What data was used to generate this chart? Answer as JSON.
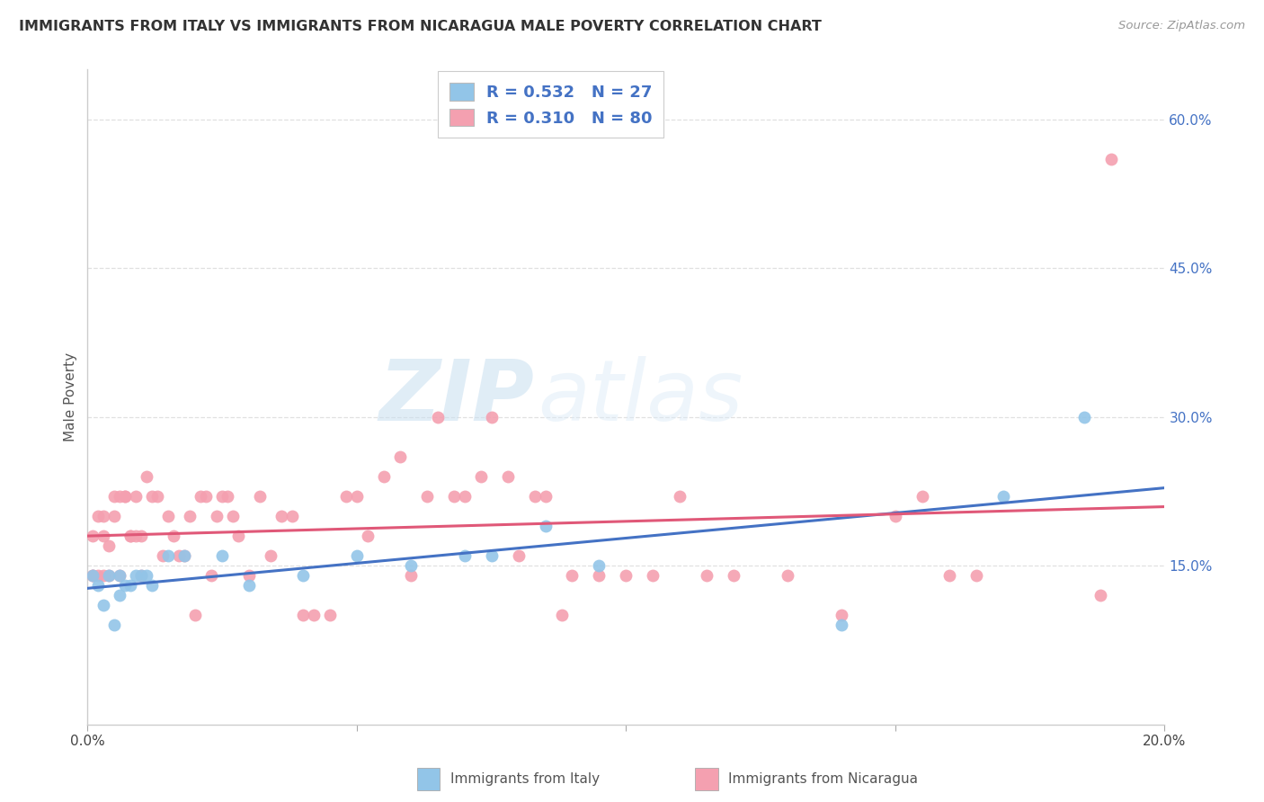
{
  "title": "IMMIGRANTS FROM ITALY VS IMMIGRANTS FROM NICARAGUA MALE POVERTY CORRELATION CHART",
  "source": "Source: ZipAtlas.com",
  "xlabel_italy": "Immigrants from Italy",
  "xlabel_nicaragua": "Immigrants from Nicaragua",
  "ylabel": "Male Poverty",
  "xlim": [
    0,
    0.2
  ],
  "ylim": [
    -0.01,
    0.65
  ],
  "xticks": [
    0.0,
    0.05,
    0.1,
    0.15,
    0.2
  ],
  "xtick_labels": [
    "0.0%",
    "",
    "",
    "",
    "20.0%"
  ],
  "ytick_labels_right": [
    "15.0%",
    "30.0%",
    "45.0%",
    "60.0%"
  ],
  "yticks_right": [
    0.15,
    0.3,
    0.45,
    0.6
  ],
  "R_italy": 0.532,
  "N_italy": 27,
  "R_nicaragua": 0.31,
  "N_nicaragua": 80,
  "color_italy": "#92C5E8",
  "color_nicaragua": "#F4A0B0",
  "color_line_italy": "#4472C4",
  "color_line_nicaragua": "#E05878",
  "color_text_blue": "#4472C4",
  "italy_x": [
    0.001,
    0.002,
    0.003,
    0.004,
    0.005,
    0.006,
    0.006,
    0.007,
    0.008,
    0.009,
    0.01,
    0.011,
    0.012,
    0.015,
    0.018,
    0.025,
    0.03,
    0.04,
    0.05,
    0.06,
    0.07,
    0.075,
    0.085,
    0.095,
    0.14,
    0.17,
    0.185
  ],
  "italy_y": [
    0.14,
    0.13,
    0.11,
    0.14,
    0.09,
    0.12,
    0.14,
    0.13,
    0.13,
    0.14,
    0.14,
    0.14,
    0.13,
    0.16,
    0.16,
    0.16,
    0.13,
    0.14,
    0.16,
    0.15,
    0.16,
    0.16,
    0.19,
    0.15,
    0.09,
    0.22,
    0.3
  ],
  "nicaragua_x": [
    0.001,
    0.001,
    0.001,
    0.002,
    0.002,
    0.003,
    0.003,
    0.003,
    0.004,
    0.004,
    0.005,
    0.005,
    0.006,
    0.006,
    0.007,
    0.007,
    0.008,
    0.008,
    0.009,
    0.009,
    0.01,
    0.01,
    0.011,
    0.012,
    0.013,
    0.014,
    0.015,
    0.016,
    0.017,
    0.018,
    0.019,
    0.02,
    0.021,
    0.022,
    0.023,
    0.024,
    0.025,
    0.026,
    0.027,
    0.028,
    0.03,
    0.032,
    0.034,
    0.036,
    0.038,
    0.04,
    0.042,
    0.045,
    0.048,
    0.05,
    0.052,
    0.055,
    0.058,
    0.06,
    0.063,
    0.065,
    0.068,
    0.07,
    0.073,
    0.075,
    0.078,
    0.08,
    0.083,
    0.085,
    0.088,
    0.09,
    0.095,
    0.1,
    0.105,
    0.11,
    0.115,
    0.12,
    0.13,
    0.14,
    0.15,
    0.155,
    0.16,
    0.165,
    0.188,
    0.19
  ],
  "nicaragua_y": [
    0.14,
    0.14,
    0.18,
    0.2,
    0.14,
    0.18,
    0.2,
    0.14,
    0.17,
    0.14,
    0.22,
    0.2,
    0.22,
    0.14,
    0.22,
    0.22,
    0.18,
    0.18,
    0.18,
    0.22,
    0.14,
    0.18,
    0.24,
    0.22,
    0.22,
    0.16,
    0.2,
    0.18,
    0.16,
    0.16,
    0.2,
    0.1,
    0.22,
    0.22,
    0.14,
    0.2,
    0.22,
    0.22,
    0.2,
    0.18,
    0.14,
    0.22,
    0.16,
    0.2,
    0.2,
    0.1,
    0.1,
    0.1,
    0.22,
    0.22,
    0.18,
    0.24,
    0.26,
    0.14,
    0.22,
    0.3,
    0.22,
    0.22,
    0.24,
    0.3,
    0.24,
    0.16,
    0.22,
    0.22,
    0.1,
    0.14,
    0.14,
    0.14,
    0.14,
    0.22,
    0.14,
    0.14,
    0.14,
    0.1,
    0.2,
    0.22,
    0.14,
    0.14,
    0.12,
    0.56
  ],
  "watermark_zip": "ZIP",
  "watermark_atlas": "atlas",
  "background_color": "#ffffff",
  "grid_color": "#e0e0e0"
}
